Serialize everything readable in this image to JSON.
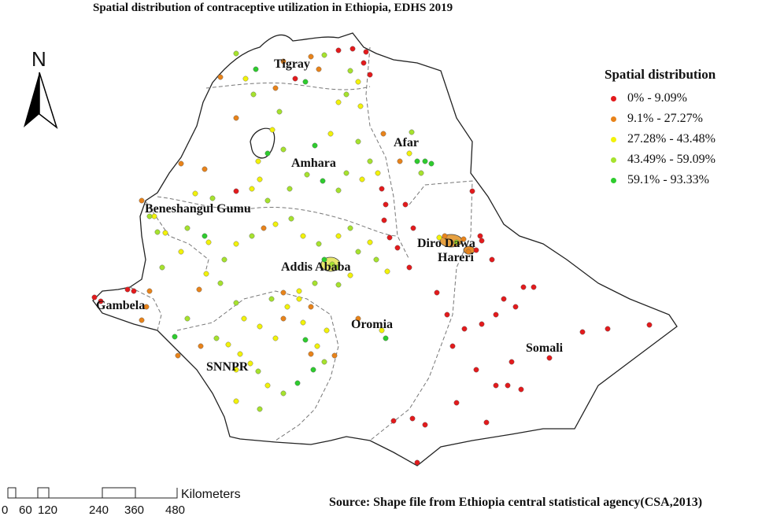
{
  "map": {
    "title": "Spatial distribution of contraceptive utilization in Ethiopia, EDHS 2019",
    "north_arrow": "N",
    "regions": [
      {
        "id": "tigray",
        "label": "Tigray"
      },
      {
        "id": "afar",
        "label": "Afar"
      },
      {
        "id": "amhara",
        "label": "Amhara"
      },
      {
        "id": "benishangul",
        "label": "Beneshangul Gumu"
      },
      {
        "id": "dire-dawa",
        "label": "Diro Dawa"
      },
      {
        "id": "hareri",
        "label": "Hareri"
      },
      {
        "id": "addis-ababa",
        "label": "Addis Ababa"
      },
      {
        "id": "gambela",
        "label": "Gambela"
      },
      {
        "id": "oromia",
        "label": "Oromia"
      },
      {
        "id": "somali",
        "label": "Somali"
      },
      {
        "id": "snnpr",
        "label": "SNNPR"
      }
    ],
    "source_note": "Source: Shape file from Ethiopia central statistical agency(CSA,2013)"
  },
  "legend": {
    "title": "Spatial distribution",
    "items": [
      {
        "label": "0% - 9.09%",
        "color": "#e31a1c"
      },
      {
        "label": "9.1% - 27.27%",
        "color": "#e8831a"
      },
      {
        "label": "27.28% - 43.48%",
        "color": "#f2f20a"
      },
      {
        "label": "43.49% - 59.09%",
        "color": "#a6e22e"
      },
      {
        "label": "59.1% - 93.33%",
        "color": "#2ecc2e"
      }
    ]
  },
  "scale_bar": {
    "unit": "Kilometers",
    "ticks": [
      "0",
      "60",
      "120",
      "240",
      "360",
      "480"
    ]
  }
}
